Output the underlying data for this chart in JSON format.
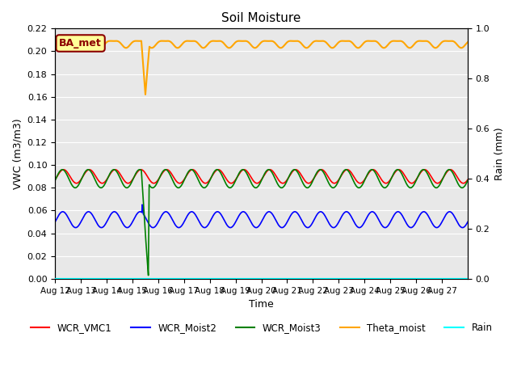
{
  "title": "Soil Moisture",
  "xlabel": "Time",
  "ylabel_left": "VWC (m3/m3)",
  "ylabel_right": "Rain (mm)",
  "annotation_text": "BA_met",
  "annotation_color": "#8B0000",
  "annotation_bg": "#FFFF99",
  "n_days": 16,
  "ylim_left": [
    0.0,
    0.22
  ],
  "ylim_right": [
    0.0,
    1.0
  ],
  "x_tick_labels": [
    "Aug 12",
    "Aug 13",
    "Aug 14",
    "Aug 15",
    "Aug 16",
    "Aug 17",
    "Aug 18",
    "Aug 19",
    "Aug 20",
    "Aug 21",
    "Aug 22",
    "Aug 23",
    "Aug 24",
    "Aug 25",
    "Aug 26",
    "Aug 27"
  ],
  "bg_color": "#E8E8E8",
  "legend_entries": [
    "WCR_VMC1",
    "WCR_Moist2",
    "WCR_Moist3",
    "Theta_moist",
    "Rain"
  ],
  "legend_colors": [
    "red",
    "blue",
    "green",
    "orange",
    "cyan"
  ],
  "yticks_left": [
    0.0,
    0.02,
    0.04,
    0.06,
    0.08,
    0.1,
    0.12,
    0.14,
    0.16,
    0.18,
    0.2,
    0.22
  ],
  "yticks_right": [
    0.0,
    0.2,
    0.4,
    0.6,
    0.8,
    1.0
  ]
}
